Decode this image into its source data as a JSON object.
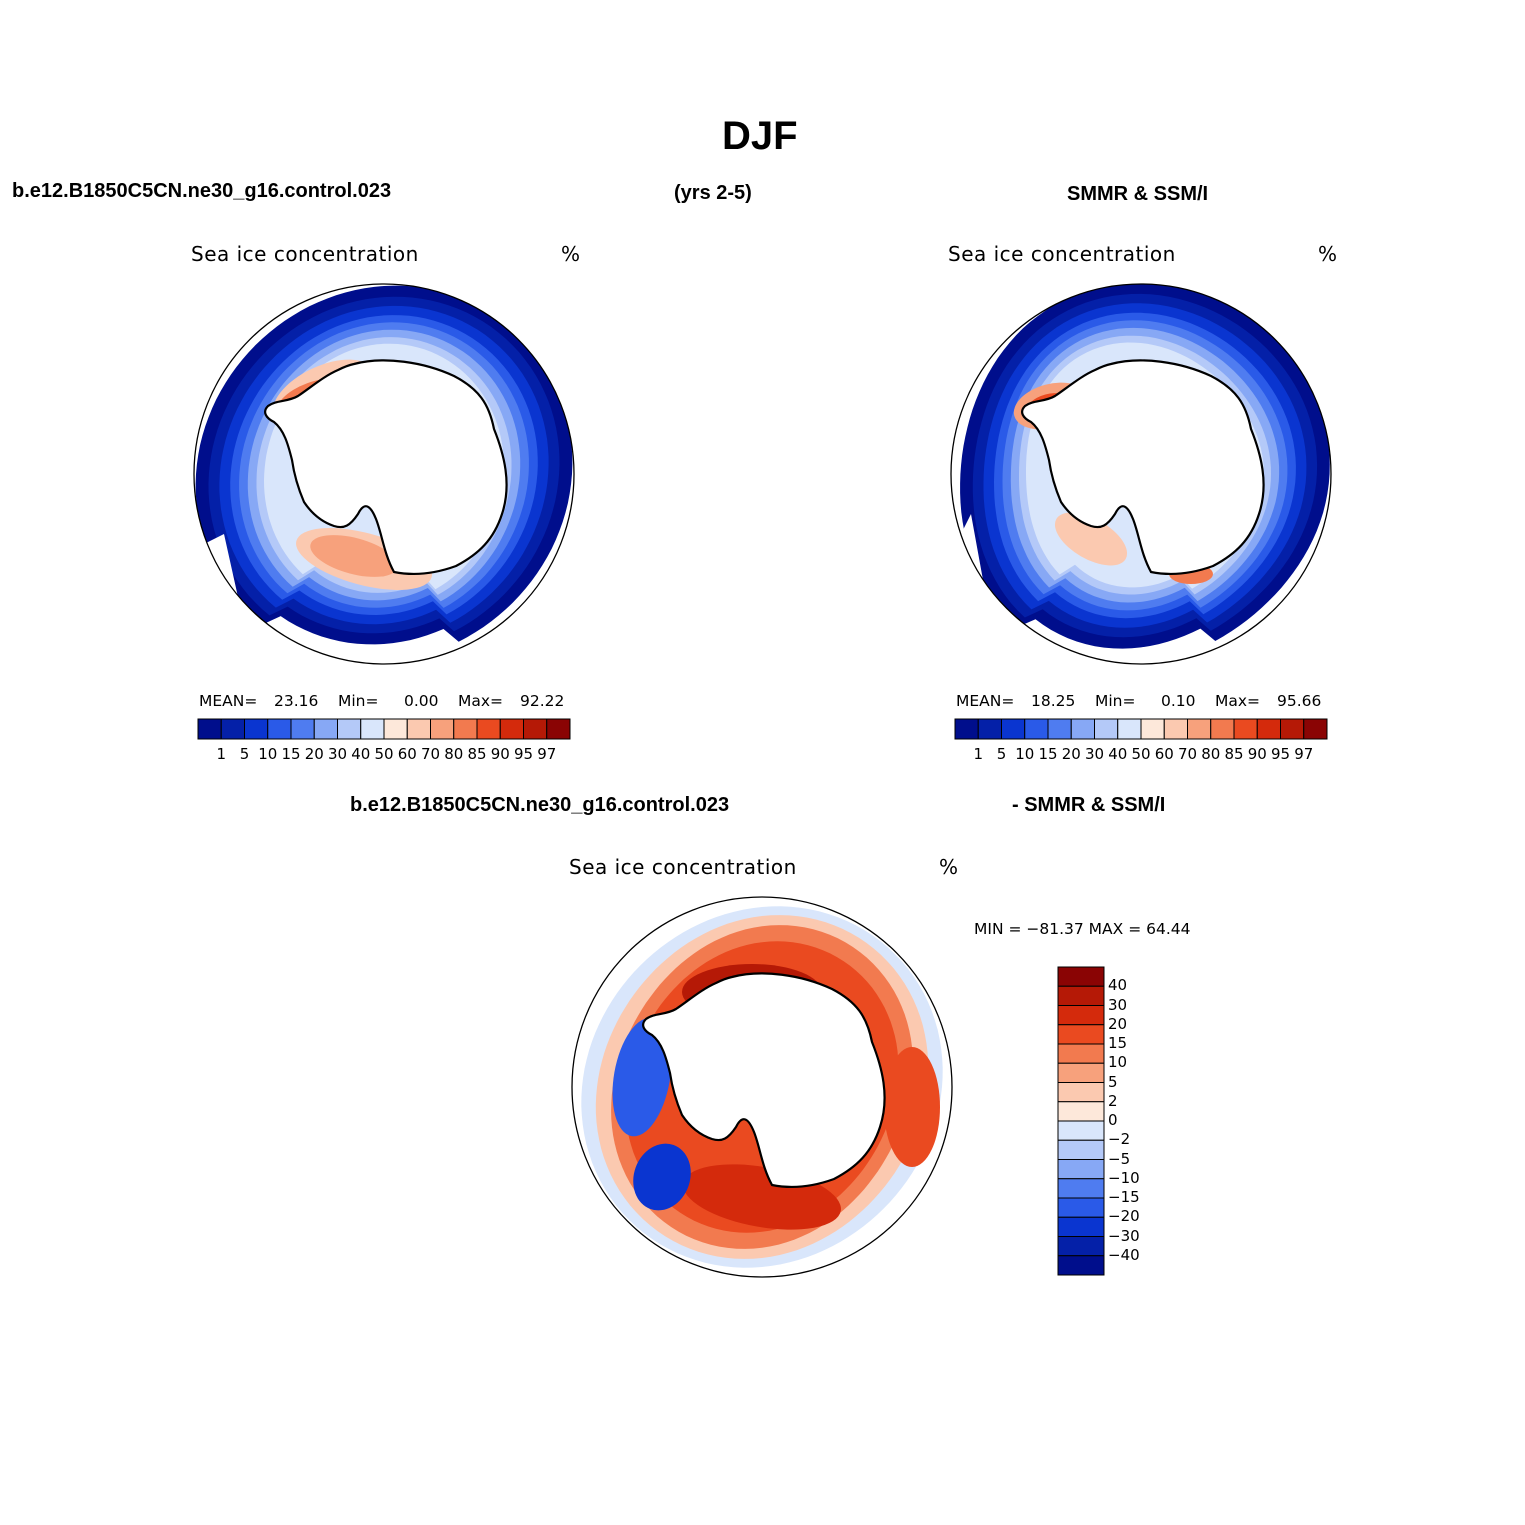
{
  "figure": {
    "title": "DJF",
    "left_header": "b.e12.B1850C5CN.ne30_g16.control.023",
    "center_header": "(yrs 2-5)",
    "right_header": "SMMR & SSM/I",
    "diff_left_header": "b.e12.B1850C5CN.ne30_g16.control.023",
    "diff_right_header": "- SMMR & SSM/I"
  },
  "colors": {
    "ocean_none": "#ffffff",
    "coast": "#000000",
    "conc_palette": [
      "#000e8c",
      "#0420a8",
      "#0a35d0",
      "#2a5ae8",
      "#4f7cf0",
      "#87a8f5",
      "#b4c9f8",
      "#d9e6fb",
      "#fde8da",
      "#fbc9b0",
      "#f7a17c",
      "#f27a4f",
      "#ea4a20",
      "#d42a0c",
      "#b51906",
      "#8a0404"
    ],
    "diff_palette": [
      "#000e8c",
      "#0420a8",
      "#0a35d0",
      "#2a5ae8",
      "#4f7cf0",
      "#87a8f5",
      "#b4c9f8",
      "#d9e6fb",
      "#fde8da",
      "#fbc9b0",
      "#f7a17c",
      "#f27a4f",
      "#ea4a20",
      "#d42a0c",
      "#b51906",
      "#8a0404"
    ]
  },
  "panels": [
    {
      "id": "model",
      "label": "Sea ice concentration",
      "units": "%",
      "stats": {
        "mean_label": "MEAN=",
        "mean": "23.16",
        "min_label": "Min=",
        "min": "0.00",
        "max_label": "Max=",
        "max": "92.22"
      }
    },
    {
      "id": "obs",
      "label": "Sea ice concentration",
      "units": "%",
      "stats": {
        "mean_label": "MEAN=",
        "mean": "18.25",
        "min_label": "Min=",
        "min": "0.10",
        "max_label": "Max=",
        "max": "95.66"
      }
    },
    {
      "id": "diff",
      "label": "Sea ice concentration",
      "units": "%",
      "stats": {
        "text": "MIN = −81.37 MAX =   64.44"
      }
    }
  ],
  "conc_colorbar": {
    "ticks": [
      "1",
      "5",
      "10",
      "15",
      "20",
      "30",
      "40",
      "50",
      "60",
      "70",
      "80",
      "85",
      "90",
      "95",
      "97"
    ]
  },
  "diff_colorbar": {
    "ticks": [
      "40",
      "30",
      "20",
      "15",
      "10",
      "5",
      "2",
      "0",
      "−2",
      "−5",
      "−10",
      "−15",
      "−20",
      "−30",
      "−40"
    ]
  },
  "chart_data": {
    "type": "heatmap",
    "title": "DJF",
    "projection": "south polar stereographic",
    "colorbar_levels_concentration": [
      1,
      5,
      10,
      15,
      20,
      30,
      40,
      50,
      60,
      70,
      80,
      85,
      90,
      95,
      97
    ],
    "colorbar_levels_difference": [
      40,
      30,
      20,
      15,
      10,
      5,
      2,
      0,
      -2,
      -5,
      -10,
      -15,
      -20,
      -30,
      -40
    ],
    "series": [
      {
        "name": "b.e12.B1850C5CN.ne30_g16.control.023",
        "mean": 23.16,
        "min": 0.0,
        "max": 92.22
      },
      {
        "name": "SMMR & SSM/I",
        "mean": 18.25,
        "min": 0.1,
        "max": 95.66
      },
      {
        "name": "b.e12.B1850C5CN.ne30_g16.control.023 - SMMR & SSM/I",
        "min": -81.37,
        "max": 64.44
      }
    ]
  }
}
